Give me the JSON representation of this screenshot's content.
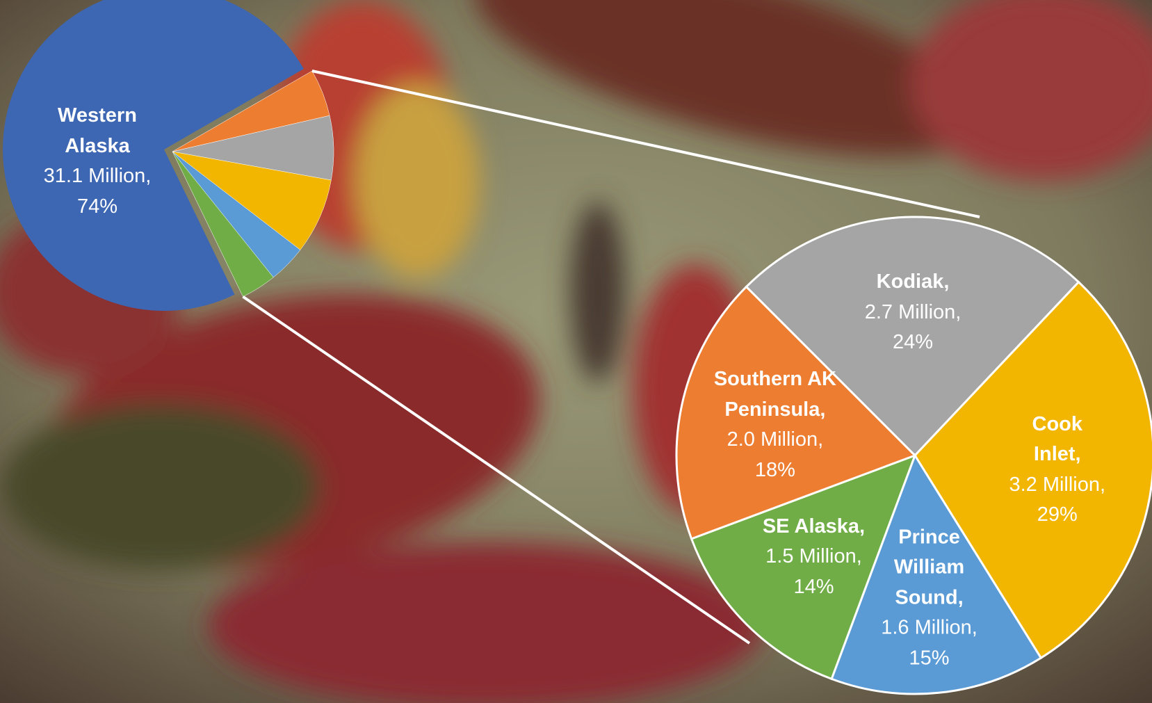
{
  "chart_data": {
    "type": "pie-of-pie",
    "categories": [
      "Western Alaska",
      "Southern AK Peninsula,",
      "Kodiak,",
      "Cook Inlet,",
      "Prince William Sound,",
      "SE Alaska,"
    ],
    "values": [
      31.1,
      2.0,
      2.7,
      3.2,
      1.6,
      1.5
    ],
    "value_labels": [
      "31.1 Million,",
      "2.0 Million,",
      "2.7 Million,",
      "3.2 Million,",
      "1.6 Million,",
      "1.5 Million,"
    ],
    "percents": [
      74,
      18,
      24,
      29,
      15,
      14
    ],
    "percent_labels": [
      "74%",
      "18%",
      "24%",
      "29%",
      "15%",
      "14%"
    ],
    "colors": [
      "#3d66b3",
      "#ed7d31",
      "#a5a5a5",
      "#f2b500",
      "#5b9bd5",
      "#70ad47"
    ]
  }
}
